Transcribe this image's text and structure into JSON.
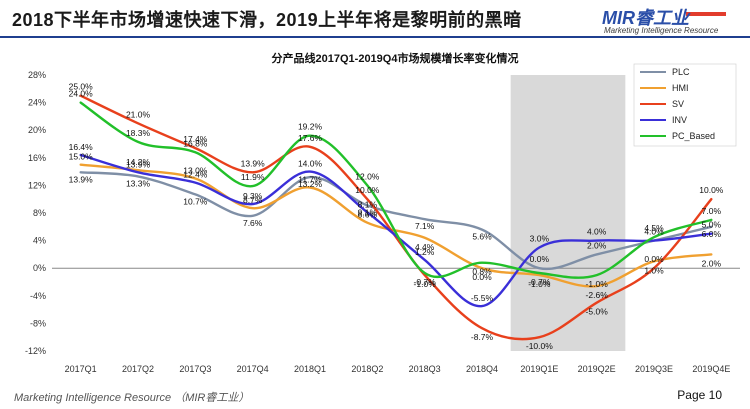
{
  "page": {
    "headline": "2018下半年市场增速快速下滑，2019上半年将是黎明前的黑暗",
    "logo_main": "MIR睿工业",
    "logo_sub": "Marketing Intelligence Resource",
    "footer_left": "Marketing Intelligence Resource （MIR睿工业）",
    "footer_right": "Page 10"
  },
  "chart_data": {
    "type": "line",
    "title": "分产品线2017Q1-2019Q4市场规模增长率变化情况",
    "categories": [
      "2017Q1",
      "2017Q2",
      "2017Q3",
      "2017Q4",
      "2018Q1",
      "2018Q2",
      "2018Q3",
      "2018Q4",
      "2019Q1E",
      "2019Q2E",
      "2019Q3E",
      "2019Q4E"
    ],
    "ylim": [
      -12,
      28
    ],
    "yticks": [
      "-12%",
      "-8%",
      "-4%",
      "0%",
      "4%",
      "8%",
      "12%",
      "16%",
      "20%",
      "24%",
      "28%"
    ],
    "ytick_values": [
      -12,
      -8,
      -4,
      0,
      4,
      8,
      12,
      16,
      20,
      24,
      28
    ],
    "shaded_region": [
      "2019Q1E",
      "2019Q2E"
    ],
    "legend_position": "top-right",
    "series": [
      {
        "name": "PLC",
        "color": "#7f8fa6",
        "values": [
          13.9,
          13.3,
          10.7,
          7.6,
          13.2,
          9.1,
          7.1,
          5.6,
          0.0,
          2.0,
          4.0,
          6.0
        ],
        "labels": [
          "13.9%",
          "13.3%",
          "10.7%",
          "7.6%",
          "13.2%",
          "9.1%",
          "7.1%",
          "5.6%",
          "0.0%",
          "2.0%",
          "4.0%",
          "6.0%"
        ]
      },
      {
        "name": "HMI",
        "color": "#f0a030",
        "values": [
          15.0,
          14.2,
          13.0,
          8.7,
          11.7,
          6.6,
          4.4,
          0.0,
          -1.0,
          -2.6,
          1.0,
          2.0
        ],
        "labels": [
          "15.0%",
          "14.2%",
          "13.0%",
          "8.7%",
          "11.7%",
          "6.6%",
          "4.4%",
          "0.0%",
          "-1.0%",
          "-2.6%",
          "1.0%",
          "2.0%"
        ]
      },
      {
        "name": "SV",
        "color": "#e8401c",
        "values": [
          25.0,
          21.0,
          17.4,
          13.9,
          17.6,
          10.0,
          -1.0,
          -8.7,
          -10.0,
          -5.0,
          0.0,
          10.0
        ],
        "labels": [
          "25.0%",
          "21.0%",
          "17.4%",
          "13.9%",
          "17.6%",
          "10.0%",
          "-1.0%",
          "-8.7%",
          "-10.0%",
          "-5.0%",
          "0.0%",
          "10.0%"
        ]
      },
      {
        "name": "INV",
        "color": "#3a2fd8",
        "values": [
          16.4,
          13.9,
          12.4,
          9.3,
          14.0,
          8.1,
          1.2,
          -5.5,
          3.0,
          4.0,
          4.0,
          5.0
        ],
        "labels": [
          "16.4%",
          "13.9%",
          "12.4%",
          "9.3%",
          "14.0%",
          "8.1%",
          "1.2%",
          "-5.5%",
          "3.0%",
          "4.0%",
          "",
          "5.0%"
        ]
      },
      {
        "name": "PC_Based",
        "color": "#22c02a",
        "values": [
          24.0,
          18.3,
          16.8,
          11.9,
          19.2,
          12.0,
          -0.7,
          0.8,
          -0.7,
          -1.0,
          4.5,
          7.0
        ],
        "labels": [
          "24.0%",
          "18.3%",
          "16.8%",
          "11.9%",
          "19.2%",
          "12.0%",
          "-0.7%",
          "0.8%",
          "-0.7%",
          "-1.0%",
          "4.5%",
          "7.0%"
        ]
      }
    ]
  }
}
